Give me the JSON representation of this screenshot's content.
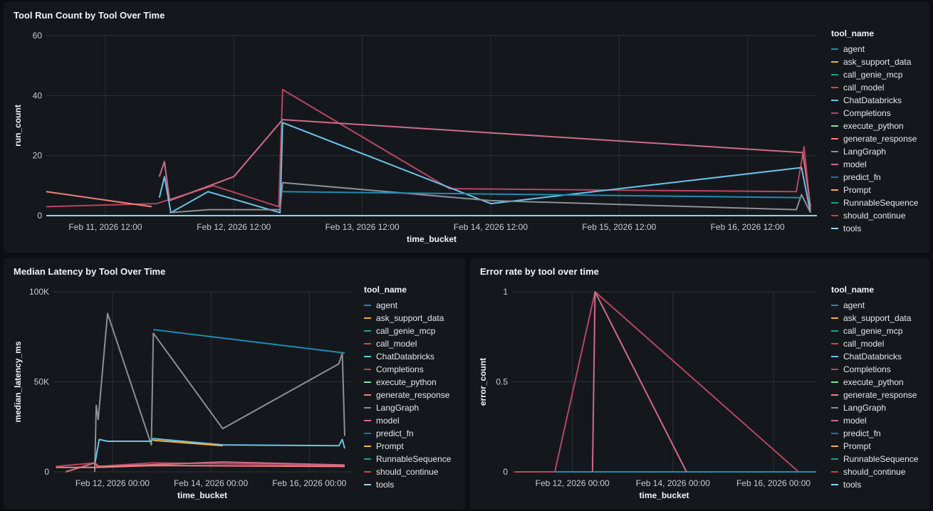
{
  "colors": {
    "agent": "#1f8bb1",
    "ask_support_data": "#f0ad2e",
    "call_genie_mcp": "#1aa57a",
    "call_model": "#e8412c",
    "ChatDatabricks": "#6bc3e8",
    "Completions": "#b8455f",
    "execute_python": "#7ee0a0",
    "generate_response": "#f07f7a",
    "LangGraph": "#8d8f93",
    "model": "#cf6c86",
    "predict_fn": "#1f6fb0",
    "Prompt": "#f2b13a",
    "RunnableSequence": "#1aa57a",
    "should_continue": "#e03a2a",
    "tools": "#8ed3f0"
  },
  "chart_data": [
    {
      "id": "run_count",
      "type": "line",
      "title": "Tool Run Count by Tool Over Time",
      "xlabel": "time_bucket",
      "ylabel": "run_count",
      "legend_title": "tool_name",
      "legend": [
        "agent",
        "ask_support_data",
        "call_genie_mcp",
        "call_model",
        "ChatDatabricks",
        "Completions",
        "execute_python",
        "generate_response",
        "LangGraph",
        "model",
        "predict_fn",
        "Prompt",
        "RunnableSequence",
        "should_continue",
        "tools"
      ],
      "x_ticks": [
        {
          "x": 10.5,
          "label": "Feb 11, 2026 12:00"
        },
        {
          "x": 11.5,
          "label": "Feb 12, 2026 12:00"
        },
        {
          "x": 12.5,
          "label": "Feb 13, 2026 12:00"
        },
        {
          "x": 13.5,
          "label": "Feb 14, 2026 12:00"
        },
        {
          "x": 14.5,
          "label": "Feb 15, 2026 12:00"
        },
        {
          "x": 15.5,
          "label": "Feb 16, 2026 12:00"
        }
      ],
      "y_ticks": [
        {
          "y": 0,
          "label": "0"
        },
        {
          "y": 20,
          "label": "20"
        },
        {
          "y": 40,
          "label": "40"
        },
        {
          "y": 60,
          "label": "60"
        }
      ],
      "xlim": [
        10.04,
        16.04
      ],
      "ylim": [
        0,
        60
      ],
      "series": [
        {
          "name": "Completions",
          "points": [
            [
              10.04,
              3
            ],
            [
              10.9,
              4
            ],
            [
              11.34,
              10
            ],
            [
              11.85,
              3
            ],
            [
              11.88,
              42
            ],
            [
              13.18,
              9
            ],
            [
              15.88,
              8
            ],
            [
              15.94,
              23
            ],
            [
              15.99,
              2
            ]
          ]
        },
        {
          "name": "model",
          "points": [
            [
              10.92,
              13
            ],
            [
              10.96,
              18
            ],
            [
              11.0,
              5
            ],
            [
              11.5,
              13
            ],
            [
              11.88,
              32
            ],
            [
              15.93,
              21
            ],
            [
              15.99,
              3
            ]
          ]
        },
        {
          "name": "generate_response",
          "points": [
            [
              10.04,
              8
            ],
            [
              10.86,
              3
            ]
          ]
        },
        {
          "name": "ChatDatabricks",
          "points": [
            [
              10.92,
              6
            ],
            [
              10.96,
              13
            ],
            [
              11.01,
              1
            ],
            [
              11.3,
              8
            ],
            [
              11.86,
              1
            ],
            [
              11.88,
              31
            ],
            [
              13.5,
              4
            ],
            [
              15.92,
              16
            ],
            [
              15.99,
              1
            ]
          ]
        },
        {
          "name": "LangGraph",
          "points": [
            [
              11.0,
              1
            ],
            [
              11.3,
              2
            ],
            [
              11.86,
              2
            ],
            [
              11.88,
              11
            ],
            [
              13.5,
              5
            ],
            [
              15.88,
              2
            ],
            [
              15.92,
              7
            ],
            [
              15.99,
              1
            ]
          ]
        },
        {
          "name": "agent",
          "points": [
            [
              11.88,
              8
            ],
            [
              15.92,
              6
            ]
          ]
        },
        {
          "name": "tools",
          "points": [
            [
              10.04,
              0
            ],
            [
              16.04,
              0
            ]
          ]
        }
      ]
    },
    {
      "id": "latency",
      "type": "line",
      "title": "Median Latency by Tool Over Time",
      "xlabel": "time_bucket",
      "ylabel": "median_latency_ms",
      "legend_title": "tool_name",
      "legend": [
        "agent",
        "ask_support_data",
        "call_genie_mcp",
        "call_model",
        "ChatDatabricks",
        "Completions",
        "execute_python",
        "generate_response",
        "LangGraph",
        "model",
        "predict_fn",
        "Prompt",
        "RunnableSequence",
        "should_continue",
        "tools"
      ],
      "x_ticks": [
        {
          "x": 12,
          "label": "Feb 12, 2026 00:00"
        },
        {
          "x": 14,
          "label": "Feb 14, 2026 00:00"
        },
        {
          "x": 16,
          "label": "Feb 16, 2026 00:00"
        }
      ],
      "y_ticks": [
        {
          "y": 0,
          "label": "0"
        },
        {
          "y": 50000,
          "label": "50K"
        },
        {
          "y": 100000,
          "label": "100K"
        }
      ],
      "xlim": [
        10.8,
        16.85
      ],
      "ylim": [
        0,
        100000
      ],
      "series": [
        {
          "name": "LangGraph",
          "points": [
            [
              11.64,
              0
            ],
            [
              11.67,
              37000
            ],
            [
              11.71,
              29000
            ],
            [
              11.9,
              88000
            ],
            [
              12.79,
              15000
            ],
            [
              12.83,
              77000
            ],
            [
              14.24,
              24000
            ],
            [
              16.6,
              60000
            ],
            [
              16.67,
              66000
            ],
            [
              16.72,
              20000
            ]
          ]
        },
        {
          "name": "agent",
          "points": [
            [
              12.83,
              79000
            ],
            [
              16.72,
              66000
            ]
          ]
        },
        {
          "name": "ChatDatabricks",
          "points": [
            [
              11.64,
              4000
            ],
            [
              11.73,
              18000
            ],
            [
              11.9,
              17000
            ],
            [
              12.79,
              17000
            ],
            [
              12.83,
              18500
            ],
            [
              14.24,
              15000
            ],
            [
              16.6,
              14500
            ],
            [
              16.67,
              18000
            ],
            [
              16.72,
              13000
            ]
          ]
        },
        {
          "name": "Prompt",
          "points": [
            [
              12.83,
              17500
            ],
            [
              14.24,
              14500
            ]
          ]
        },
        {
          "name": "Completions",
          "points": [
            [
              10.85,
              3000
            ],
            [
              11.64,
              5000
            ],
            [
              11.73,
              3000
            ],
            [
              12.79,
              5000
            ],
            [
              14.3,
              4500
            ],
            [
              16.72,
              3500
            ]
          ]
        },
        {
          "name": "model",
          "points": [
            [
              11.05,
              0
            ],
            [
              11.64,
              5000
            ],
            [
              11.7,
              3000
            ],
            [
              12.83,
              4000
            ],
            [
              14.24,
              5500
            ],
            [
              16.72,
              3800
            ]
          ]
        },
        {
          "name": "generate_response",
          "points": [
            [
              10.85,
              2500
            ],
            [
              11.64,
              2500
            ],
            [
              12.83,
              3500
            ],
            [
              16.72,
              3000
            ]
          ]
        }
      ]
    },
    {
      "id": "error_rate",
      "type": "line",
      "title": "Error rate by tool over time",
      "xlabel": "time_bucket",
      "ylabel": "error_count",
      "legend_title": "tool_name",
      "legend": [
        "agent",
        "ask_support_data",
        "call_genie_mcp",
        "call_model",
        "ChatDatabricks",
        "Completions",
        "execute_python",
        "generate_response",
        "LangGraph",
        "model",
        "predict_fn",
        "Prompt",
        "RunnableSequence",
        "should_continue",
        "tools"
      ],
      "x_ticks": [
        {
          "x": 12,
          "label": "Feb 12, 2026 00:00"
        },
        {
          "x": 14,
          "label": "Feb 14, 2026 00:00"
        },
        {
          "x": 16,
          "label": "Feb 16, 2026 00:00"
        }
      ],
      "y_ticks": [
        {
          "y": 0,
          "label": "0"
        },
        {
          "y": 0.5,
          "label": "0.5"
        },
        {
          "y": 1,
          "label": "1"
        }
      ],
      "xlim": [
        10.8,
        16.85
      ],
      "ylim": [
        0,
        1
      ],
      "series": [
        {
          "name": "tools",
          "points": [
            [
              10.85,
              0
            ],
            [
              16.85,
              0
            ]
          ]
        },
        {
          "name": "agent",
          "points": [
            [
              11.55,
              0
            ],
            [
              16.85,
              0
            ]
          ]
        },
        {
          "name": "Completions",
          "points": [
            [
              10.85,
              0
            ],
            [
              11.65,
              0
            ],
            [
              12.45,
              1
            ],
            [
              16.5,
              0
            ]
          ]
        },
        {
          "name": "model",
          "points": [
            [
              12.4,
              0
            ],
            [
              12.45,
              1
            ],
            [
              14.27,
              0
            ]
          ]
        }
      ]
    }
  ]
}
